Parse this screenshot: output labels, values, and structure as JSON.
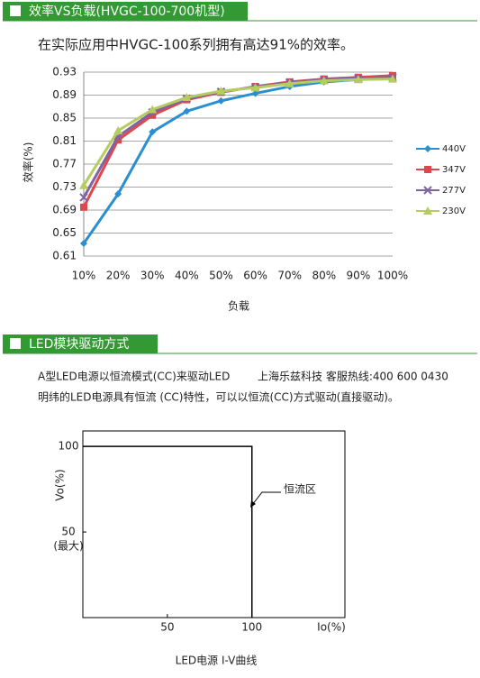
{
  "section1": {
    "header": "效率VS负载(HVGC-100-700机型)",
    "text": "在实际应用中HVGC-100系列拥有高达91%的效率。"
  },
  "chart_data": [
    {
      "type": "line",
      "ylabel": "效率(%)",
      "xlabel": "负载",
      "categories": [
        "10%",
        "20%",
        "30%",
        "40%",
        "50%",
        "60%",
        "70%",
        "80%",
        "90%",
        "100%"
      ],
      "ylim": [
        0.61,
        0.93
      ],
      "yticks": [
        0.61,
        0.65,
        0.69,
        0.73,
        0.77,
        0.81,
        0.85,
        0.89,
        0.93
      ],
      "grid": true,
      "legend": "right",
      "series": [
        {
          "name": "440V",
          "color": "#2a8fd0",
          "marker": "diamond",
          "values": [
            0.632,
            0.718,
            0.826,
            0.862,
            0.88,
            0.893,
            0.905,
            0.913,
            0.917,
            0.92
          ]
        },
        {
          "name": "347V",
          "color": "#e0474c",
          "marker": "square",
          "values": [
            0.695,
            0.812,
            0.855,
            0.882,
            0.895,
            0.905,
            0.913,
            0.918,
            0.921,
            0.924
          ]
        },
        {
          "name": "277V",
          "color": "#8064a2",
          "marker": "x",
          "values": [
            0.712,
            0.818,
            0.86,
            0.884,
            0.896,
            0.904,
            0.912,
            0.917,
            0.919,
            0.921
          ]
        },
        {
          "name": "230V",
          "color": "#b5cc5e",
          "marker": "triangle",
          "values": [
            0.733,
            0.828,
            0.865,
            0.886,
            0.897,
            0.903,
            0.91,
            0.915,
            0.917,
            0.918
          ]
        }
      ]
    },
    {
      "type": "line",
      "title": "LED电源 I-V曲线",
      "ylabel": "Vo(%)",
      "xlabel": "Io(%)",
      "y_max_label": "(最大)",
      "annotation": "恒流区",
      "xlim": [
        0,
        155
      ],
      "xticks": [
        50,
        100
      ],
      "ylim": [
        0,
        109
      ],
      "yticks": [
        100,
        50
      ],
      "series": [
        {
          "color": "#000000",
          "x": [
            0,
            100,
            100
          ],
          "values": [
            100,
            100,
            0
          ]
        }
      ]
    }
  ],
  "section2": {
    "header": "LED模块驱动方式",
    "line1": "A型LED电源以恒流模式(CC)来驱动LED",
    "contact": "上海乐兹科技 客服热线:400 600 0430",
    "line2": "明纬的LED电源具有恒流 (CC)特性，可以以恒流(CC)方式驱动(直接驱动)。"
  }
}
